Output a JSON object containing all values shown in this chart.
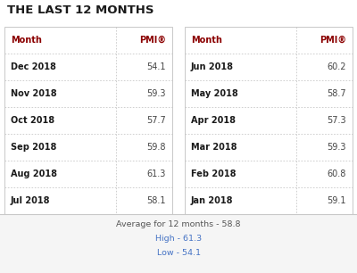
{
  "title": "THE LAST 12 MONTHS",
  "title_color": "#1a1a1a",
  "title_fontsize": 9.5,
  "left_table": {
    "headers": [
      "Month",
      "PMI®"
    ],
    "rows": [
      [
        "Dec 2018",
        "54.1"
      ],
      [
        "Nov 2018",
        "59.3"
      ],
      [
        "Oct 2018",
        "57.7"
      ],
      [
        "Sep 2018",
        "59.8"
      ],
      [
        "Aug 2018",
        "61.3"
      ],
      [
        "Jul 2018",
        "58.1"
      ]
    ]
  },
  "right_table": {
    "headers": [
      "Month",
      "PMI®"
    ],
    "rows": [
      [
        "Jun 2018",
        "60.2"
      ],
      [
        "May 2018",
        "58.7"
      ],
      [
        "Apr 2018",
        "57.3"
      ],
      [
        "Mar 2018",
        "59.3"
      ],
      [
        "Feb 2018",
        "60.8"
      ],
      [
        "Jan 2018",
        "59.1"
      ]
    ]
  },
  "footer_lines": [
    {
      "text": "Average for 12 months - 58.8",
      "color": "#555555"
    },
    {
      "text": "High - 61.3",
      "color": "#4472c4"
    },
    {
      "text": "Low - 54.1",
      "color": "#4472c4"
    }
  ],
  "header_bold_color": "#8b0000",
  "month_color": "#1a1a1a",
  "pmi_color": "#444444",
  "border_color": "#c8c8c8",
  "bg_color": "#ffffff",
  "footer_bg": "#f5f5f5",
  "header_fontsize": 7.0,
  "data_fontsize": 7.0,
  "footer_fontsize": 6.8
}
